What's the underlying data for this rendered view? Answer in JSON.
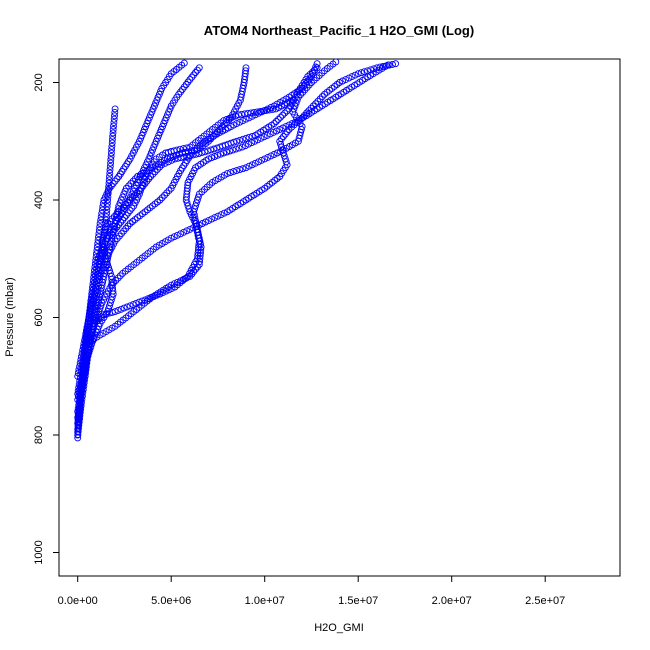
{
  "chart_data": {
    "type": "scatter",
    "title": "ATOM4 Northeast_Pacific_1 H2O_GMI (Log)",
    "xlabel": "H2O_GMI",
    "ylabel": "Pressure (mbar)",
    "xlim": [
      -1000000,
      29000000
    ],
    "ylim": [
      1040,
      160
    ],
    "y_inverted": true,
    "x_ticks": [
      0,
      5000000,
      10000000,
      15000000,
      20000000,
      25000000
    ],
    "x_tick_labels": [
      "0.0e+00",
      "5.0e+06",
      "1.0e+07",
      "1.5e+07",
      "2.0e+07",
      "2.5e+07"
    ],
    "y_ticks": [
      200,
      400,
      600,
      800,
      1000
    ],
    "y_tick_labels": [
      "200",
      "400",
      "600",
      "800",
      "1000"
    ],
    "marker": "open-circle",
    "color": "#0000ff",
    "grid": false,
    "series": [
      {
        "points": [
          [
            0,
            805
          ],
          [
            100000,
            760
          ],
          [
            200000,
            720
          ],
          [
            300000,
            680
          ],
          [
            450000,
            640
          ],
          [
            600000,
            600
          ],
          [
            750000,
            560
          ],
          [
            900000,
            520
          ],
          [
            1050000,
            480
          ],
          [
            1200000,
            440
          ],
          [
            1400000,
            400
          ],
          [
            1700000,
            380
          ],
          [
            2200000,
            360
          ],
          [
            2800000,
            330
          ],
          [
            3300000,
            300
          ],
          [
            3700000,
            270
          ],
          [
            4100000,
            240
          ],
          [
            4500000,
            210
          ],
          [
            5000000,
            185
          ],
          [
            5700000,
            167
          ]
        ]
      },
      {
        "points": [
          [
            0,
            795
          ],
          [
            150000,
            740
          ],
          [
            300000,
            690
          ],
          [
            500000,
            640
          ],
          [
            700000,
            600
          ],
          [
            900000,
            560
          ],
          [
            1100000,
            520
          ],
          [
            1300000,
            490
          ],
          [
            1600000,
            460
          ],
          [
            2000000,
            440
          ],
          [
            2600000,
            410
          ],
          [
            3200000,
            370
          ],
          [
            3800000,
            330
          ],
          [
            4200000,
            300
          ],
          [
            4600000,
            270
          ],
          [
            5000000,
            240
          ],
          [
            5400000,
            220
          ],
          [
            6000000,
            195
          ],
          [
            6500000,
            175
          ]
        ]
      },
      {
        "points": [
          [
            0,
            800
          ],
          [
            200000,
            745
          ],
          [
            400000,
            700
          ],
          [
            600000,
            650
          ],
          [
            800000,
            610
          ],
          [
            1000000,
            570
          ],
          [
            1200000,
            530
          ],
          [
            1500000,
            500
          ],
          [
            2000000,
            470
          ],
          [
            2800000,
            440
          ],
          [
            3600000,
            420
          ],
          [
            4400000,
            400
          ],
          [
            5000000,
            380
          ],
          [
            5500000,
            350
          ],
          [
            6100000,
            320
          ],
          [
            6800000,
            300
          ],
          [
            7600000,
            285
          ],
          [
            8500000,
            270
          ],
          [
            9500000,
            255
          ],
          [
            10500000,
            240
          ],
          [
            11300000,
            225
          ],
          [
            12000000,
            210
          ],
          [
            12500000,
            190
          ],
          [
            12800000,
            168
          ]
        ]
      },
      {
        "points": [
          [
            0,
            790
          ],
          [
            150000,
            730
          ],
          [
            350000,
            680
          ],
          [
            600000,
            640
          ],
          [
            900000,
            610
          ],
          [
            1400000,
            595
          ],
          [
            2000000,
            590
          ],
          [
            2800000,
            580
          ],
          [
            3600000,
            570
          ],
          [
            4400000,
            560
          ],
          [
            5200000,
            548
          ],
          [
            5900000,
            530
          ],
          [
            6400000,
            500
          ],
          [
            6500000,
            470
          ],
          [
            6300000,
            440
          ],
          [
            6000000,
            420
          ],
          [
            5800000,
            400
          ],
          [
            5900000,
            370
          ],
          [
            6300000,
            345
          ],
          [
            7000000,
            330
          ],
          [
            7800000,
            320
          ],
          [
            8800000,
            310
          ],
          [
            9800000,
            295
          ],
          [
            10800000,
            280
          ],
          [
            11800000,
            265
          ],
          [
            12800000,
            245
          ],
          [
            13800000,
            225
          ],
          [
            14800000,
            205
          ],
          [
            15800000,
            185
          ],
          [
            16600000,
            170
          ]
        ]
      },
      {
        "points": [
          [
            0,
            780
          ],
          [
            200000,
            720
          ],
          [
            450000,
            670
          ],
          [
            700000,
            640
          ],
          [
            1200000,
            630
          ],
          [
            2000000,
            615
          ],
          [
            3000000,
            590
          ],
          [
            4000000,
            565
          ],
          [
            5000000,
            545
          ],
          [
            6000000,
            530
          ],
          [
            6500000,
            510
          ],
          [
            6600000,
            480
          ],
          [
            6400000,
            450
          ],
          [
            6200000,
            420
          ],
          [
            6500000,
            390
          ],
          [
            7200000,
            370
          ],
          [
            8000000,
            355
          ],
          [
            9000000,
            345
          ],
          [
            10000000,
            330
          ],
          [
            11000000,
            315
          ],
          [
            11800000,
            300
          ],
          [
            12000000,
            275
          ],
          [
            11500000,
            250
          ],
          [
            11800000,
            225
          ],
          [
            12500000,
            200
          ],
          [
            13200000,
            180
          ],
          [
            13800000,
            165
          ]
        ]
      },
      {
        "points": [
          [
            0,
            770
          ],
          [
            200000,
            730
          ],
          [
            400000,
            690
          ],
          [
            600000,
            650
          ],
          [
            800000,
            620
          ],
          [
            1000000,
            590
          ],
          [
            1200000,
            560
          ],
          [
            1400000,
            530
          ],
          [
            1600000,
            500
          ],
          [
            1800000,
            470
          ],
          [
            2000000,
            440
          ],
          [
            2200000,
            410
          ],
          [
            2600000,
            380
          ],
          [
            3200000,
            360
          ],
          [
            4000000,
            345
          ],
          [
            4800000,
            330
          ],
          [
            5600000,
            320
          ],
          [
            6400000,
            315
          ],
          [
            7000000,
            300
          ],
          [
            7600000,
            280
          ],
          [
            8200000,
            260
          ],
          [
            8700000,
            230
          ],
          [
            8900000,
            200
          ],
          [
            9000000,
            175
          ]
        ]
      },
      {
        "points": [
          [
            0,
            700
          ],
          [
            300000,
            650
          ],
          [
            600000,
            600
          ],
          [
            900000,
            560
          ],
          [
            1100000,
            520
          ],
          [
            1300000,
            480
          ],
          [
            1500000,
            440
          ],
          [
            1600000,
            400
          ],
          [
            1700000,
            360
          ],
          [
            1800000,
            320
          ],
          [
            1900000,
            280
          ],
          [
            2000000,
            245
          ]
        ]
      },
      {
        "points": [
          [
            0,
            760
          ],
          [
            300000,
            700
          ],
          [
            600000,
            650
          ],
          [
            900000,
            610
          ],
          [
            1300000,
            575
          ],
          [
            1800000,
            545
          ],
          [
            2400000,
            525
          ],
          [
            3000000,
            510
          ],
          [
            3600000,
            495
          ],
          [
            4200000,
            480
          ],
          [
            5000000,
            465
          ],
          [
            6000000,
            450
          ],
          [
            7000000,
            435
          ],
          [
            8000000,
            420
          ],
          [
            9000000,
            400
          ],
          [
            10000000,
            380
          ],
          [
            10800000,
            360
          ],
          [
            11200000,
            340
          ],
          [
            11000000,
            320
          ],
          [
            10800000,
            300
          ],
          [
            11300000,
            280
          ],
          [
            12000000,
            260
          ],
          [
            12600000,
            240
          ],
          [
            13200000,
            220
          ],
          [
            14000000,
            200
          ],
          [
            15000000,
            185
          ],
          [
            16000000,
            175
          ],
          [
            17000000,
            168
          ]
        ]
      },
      {
        "points": [
          [
            0,
            740
          ],
          [
            400000,
            680
          ],
          [
            800000,
            640
          ],
          [
            1200000,
            610
          ],
          [
            1600000,
            590
          ],
          [
            1900000,
            560
          ],
          [
            1800000,
            530
          ],
          [
            1500000,
            500
          ],
          [
            1300000,
            470
          ],
          [
            1600000,
            440
          ],
          [
            2200000,
            420
          ],
          [
            2800000,
            400
          ],
          [
            3400000,
            380
          ],
          [
            3900000,
            360
          ],
          [
            4500000,
            340
          ],
          [
            5200000,
            330
          ],
          [
            6000000,
            325
          ],
          [
            6800000,
            318
          ],
          [
            7600000,
            310
          ],
          [
            8500000,
            300
          ],
          [
            9500000,
            290
          ],
          [
            10500000,
            270
          ],
          [
            11300000,
            245
          ],
          [
            11800000,
            215
          ],
          [
            12300000,
            190
          ],
          [
            12800000,
            175
          ]
        ]
      },
      {
        "points": [
          [
            0,
            730
          ],
          [
            300000,
            670
          ],
          [
            500000,
            620
          ],
          [
            700000,
            580
          ],
          [
            900000,
            540
          ],
          [
            1100000,
            500
          ],
          [
            1500000,
            470
          ],
          [
            2000000,
            450
          ],
          [
            2500000,
            430
          ],
          [
            3000000,
            410
          ],
          [
            3300000,
            390
          ],
          [
            3500000,
            370
          ],
          [
            3800000,
            350
          ],
          [
            4200000,
            330
          ],
          [
            4700000,
            320
          ],
          [
            5300000,
            315
          ],
          [
            6000000,
            310
          ],
          [
            6600000,
            295
          ],
          [
            7200000,
            280
          ],
          [
            7800000,
            265
          ],
          [
            8600000,
            255
          ],
          [
            9600000,
            250
          ],
          [
            10600000,
            245
          ],
          [
            11500000,
            230
          ]
        ]
      }
    ]
  }
}
